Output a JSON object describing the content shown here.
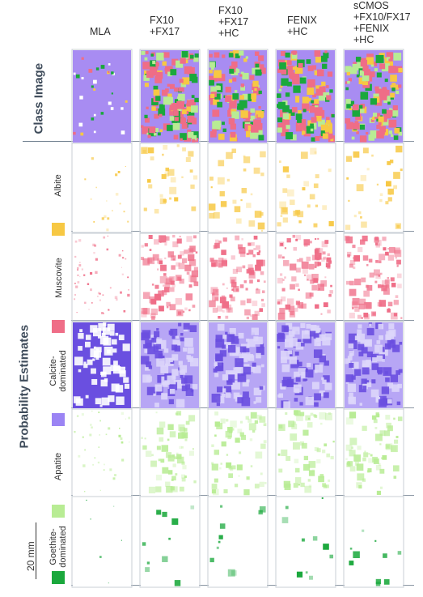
{
  "columns": [
    {
      "label": "MLA"
    },
    {
      "label": "FX10\n+FX17"
    },
    {
      "label": "FX10\n+FX17\n+HC"
    },
    {
      "label": "FENIX\n+HC"
    },
    {
      "label": "sCMOS\n+FX10/FX17\n+FENIX\n+HC"
    }
  ],
  "class_image_label": "Class Image",
  "probability_label": "Probability Estimates",
  "scale_bar": "20 mm",
  "rows": [
    {
      "label": "Albite",
      "color": "#f7c843"
    },
    {
      "label": "Muscovite",
      "color": "#ef6d87"
    },
    {
      "label": "Calcite-\ndominated",
      "color": "#9b84f4"
    },
    {
      "label": "Apatite",
      "color": "#b8ec94"
    },
    {
      "label": "Goethite-\ndominated",
      "color": "#1aa83c"
    }
  ]
}
